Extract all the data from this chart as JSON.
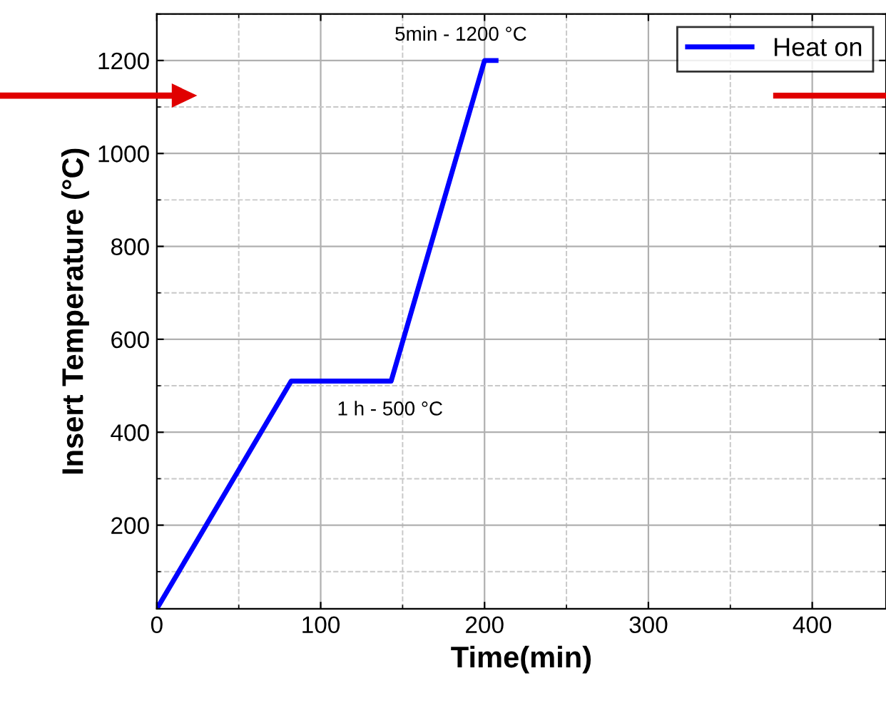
{
  "chart_data": {
    "type": "line",
    "xlabel": "Time(min)",
    "ylabel": "Insert Temperature (°C)",
    "xlim": [
      0,
      445
    ],
    "ylim": [
      20,
      1300
    ],
    "xticks": [
      0,
      100,
      200,
      300,
      400
    ],
    "yticks": [
      200,
      400,
      600,
      800,
      1000,
      1200
    ],
    "grid": true,
    "legend": "top right",
    "line_style": "solid",
    "marker": "none",
    "series": [
      {
        "name": "Heat on",
        "color": "#0000ff",
        "x": [
          0,
          82,
          143,
          200,
          207
        ],
        "values": [
          20,
          510,
          510,
          1200,
          1200
        ]
      }
    ],
    "annotations": [
      {
        "text": "5min - 1200 °C",
        "x": 200,
        "y": 1200
      },
      {
        "text": "1 h - 500 °C",
        "x": 110,
        "y": 510
      }
    ]
  }
}
